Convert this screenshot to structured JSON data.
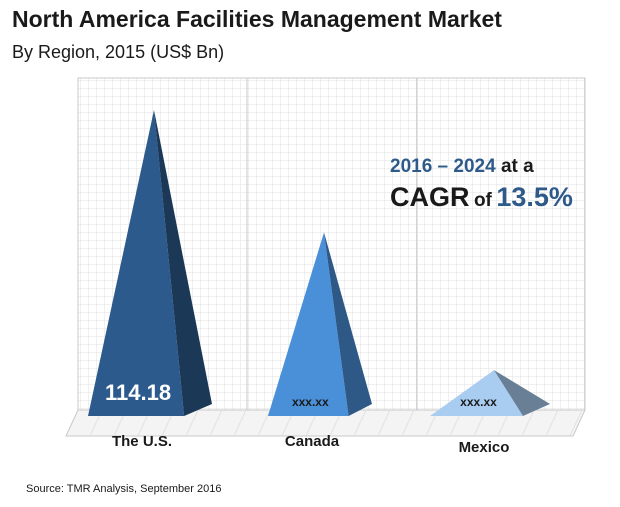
{
  "header": {
    "title": "North America Facilities Management Market",
    "subtitle": "By Region, 2015 (US$ Bn)"
  },
  "annotation": {
    "period": "2016 – 2024",
    "at_a": "at a",
    "cagr_word": "CAGR",
    "of_word": "of",
    "rate": "13.5%"
  },
  "footer": {
    "source": "Source: TMR Analysis, September 2016"
  },
  "colors": {
    "us": "#2d5a8c",
    "canada": "#4a90d9",
    "mexico": "#a9cdf0",
    "accent_text": "#2e5a8a"
  },
  "chart_data": {
    "type": "bar",
    "shape": "pyramid",
    "title": "North America Facilities Management Market",
    "subtitle": "By Region, 2015 (US$ Bn)",
    "categories": [
      "The U.S.",
      "Canada",
      "Mexico"
    ],
    "values": [
      114.18,
      null,
      null
    ],
    "data_labels": [
      "114.18",
      "xxx.xx",
      "xxx.xx"
    ],
    "relative_heights": [
      1.0,
      0.6,
      0.15
    ],
    "grid": true,
    "legend": "none"
  }
}
